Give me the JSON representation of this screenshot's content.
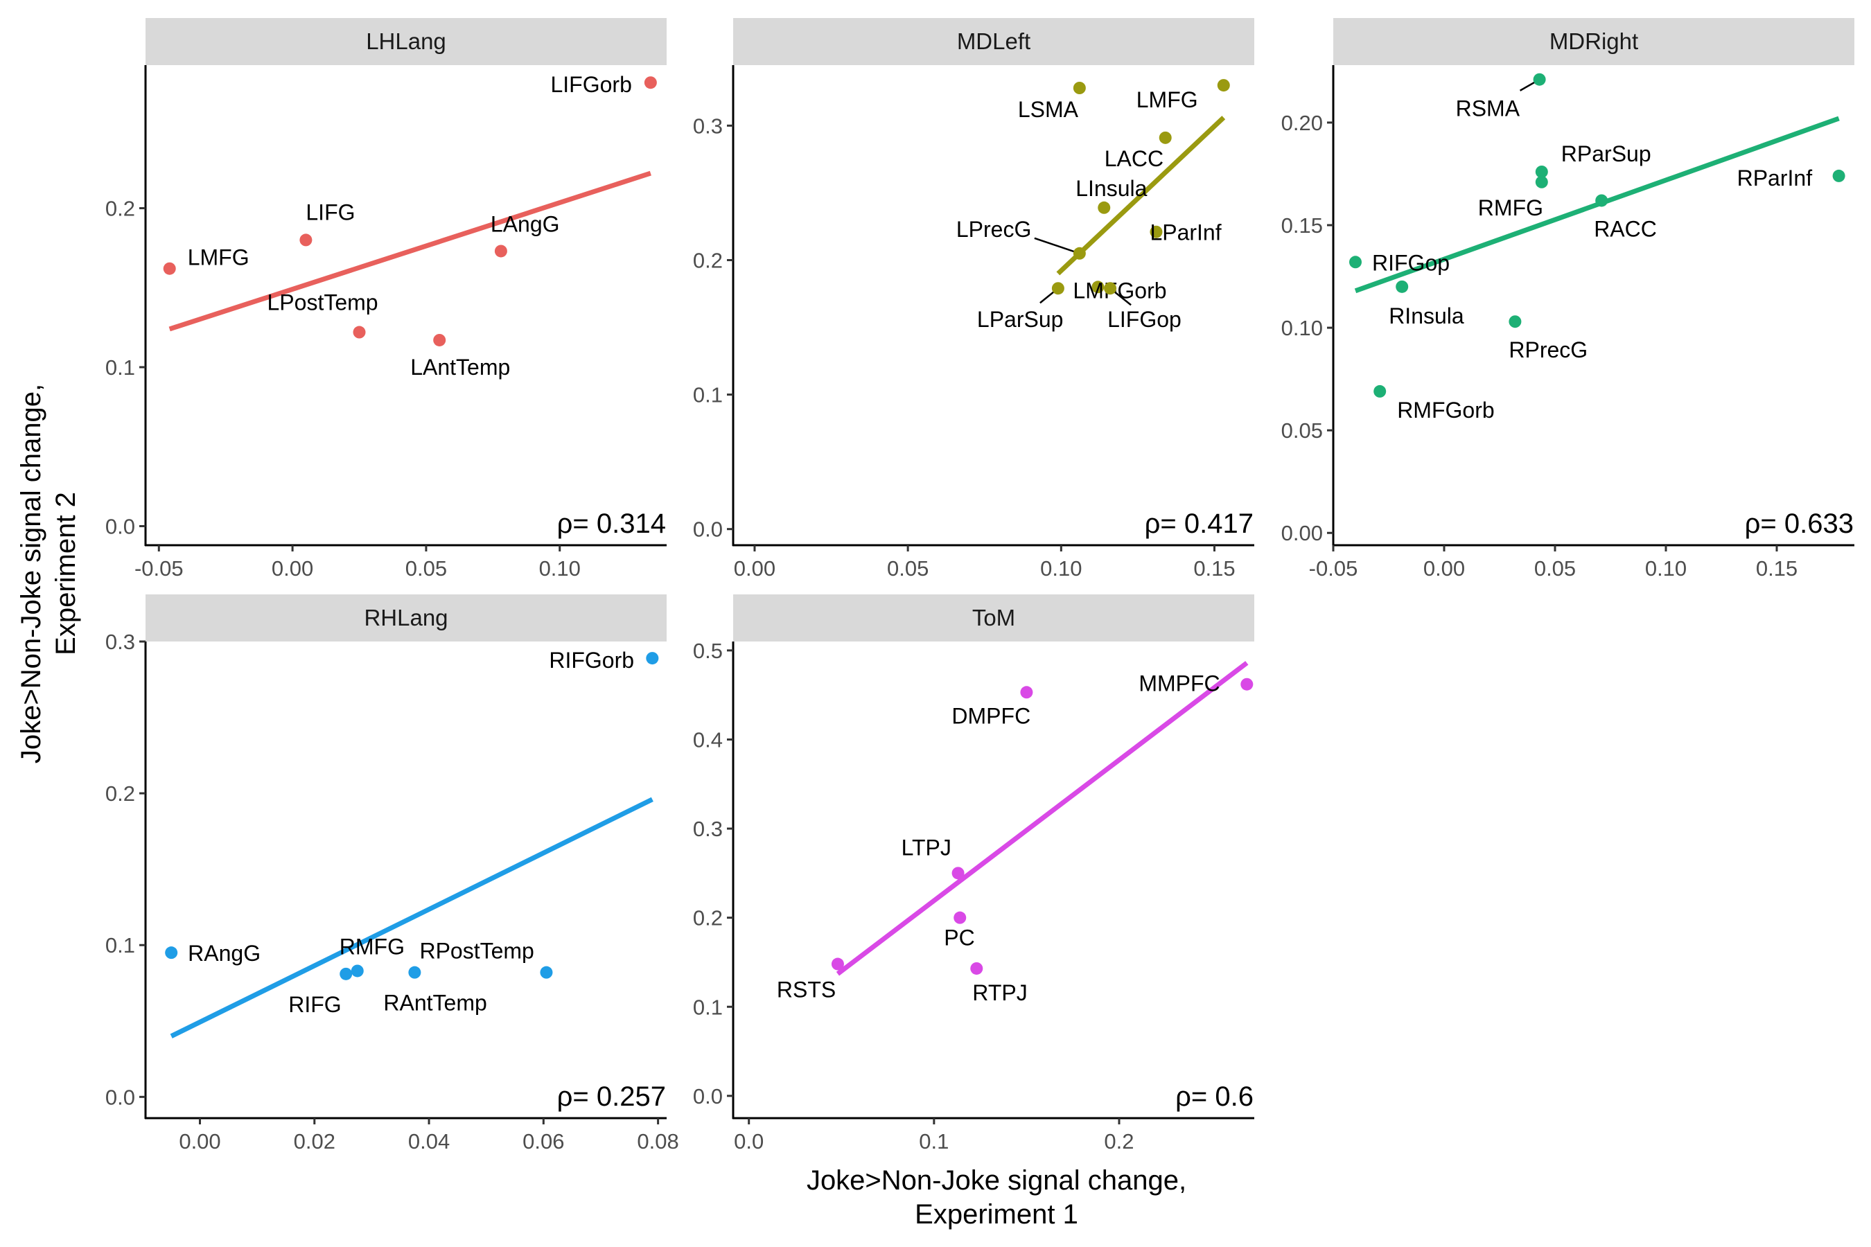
{
  "chart_data": {
    "type": "scatter",
    "xlabel": [
      "Joke>Non-Joke signal change,",
      "Experiment 1"
    ],
    "ylabel": [
      "Joke>Non-Joke signal change,",
      "Experiment 2"
    ],
    "panels": [
      {
        "title": "LHLang",
        "color": "#E8605C",
        "xlim": [
          -0.055,
          0.14
        ],
        "ylim": [
          -0.012,
          0.29
        ],
        "xticks": [
          -0.05,
          0.0,
          0.05,
          0.1
        ],
        "xtick_labels": [
          "-0.05",
          "0.00",
          "0.05",
          "0.10"
        ],
        "yticks": [
          0.0,
          0.1,
          0.2
        ],
        "ytick_labels": [
          "0.0",
          "0.1",
          "0.2"
        ],
        "fit": [
          [
            -0.046,
            0.124
          ],
          [
            0.134,
            0.222
          ]
        ],
        "rho": "ρ= 0.314",
        "points": [
          {
            "label": "LIFGorb",
            "x": 0.134,
            "y": 0.279
          },
          {
            "label": "LMFG",
            "x": -0.046,
            "y": 0.162
          },
          {
            "label": "LIFG",
            "x": 0.005,
            "y": 0.18
          },
          {
            "label": "LAngG",
            "x": 0.078,
            "y": 0.173
          },
          {
            "label": "LPostTemp",
            "x": 0.025,
            "y": 0.122
          },
          {
            "label": "LAntTemp",
            "x": 0.055,
            "y": 0.117
          }
        ]
      },
      {
        "title": "MDLeft",
        "color": "#9A9A10",
        "xlim": [
          -0.007,
          0.163
        ],
        "ylim": [
          -0.012,
          0.345
        ],
        "xticks": [
          0.0,
          0.05,
          0.1,
          0.15
        ],
        "xtick_labels": [
          "0.00",
          "0.05",
          "0.10",
          "0.15"
        ],
        "yticks": [
          0.0,
          0.1,
          0.2,
          0.3
        ],
        "ytick_labels": [
          "0.0",
          "0.1",
          "0.2",
          "0.3"
        ],
        "fit": [
          [
            0.099,
            0.19
          ],
          [
            0.153,
            0.306
          ]
        ],
        "rho": "ρ= 0.417",
        "points": [
          {
            "label": "LSMA",
            "x": 0.106,
            "y": 0.328
          },
          {
            "label": "LMFG",
            "x": 0.153,
            "y": 0.33
          },
          {
            "label": "LACC",
            "x": 0.134,
            "y": 0.291
          },
          {
            "label": "LInsula",
            "x": 0.114,
            "y": 0.239
          },
          {
            "label": "LParInf",
            "x": 0.131,
            "y": 0.221
          },
          {
            "label": "LPrecG",
            "x": 0.106,
            "y": 0.205
          },
          {
            "label": "LMFGorb",
            "x": 0.112,
            "y": 0.18
          },
          {
            "label": "LParSup",
            "x": 0.099,
            "y": 0.179
          },
          {
            "label": "LIFGop",
            "x": 0.116,
            "y": 0.179
          }
        ]
      },
      {
        "title": "MDRight",
        "color": "#1DB075",
        "xlim": [
          -0.05,
          0.185
        ],
        "ylim": [
          -0.006,
          0.228
        ],
        "xticks": [
          -0.05,
          0.0,
          0.05,
          0.1,
          0.15
        ],
        "xtick_labels": [
          "-0.05",
          "0.00",
          "0.05",
          "0.10",
          "0.15"
        ],
        "yticks": [
          0.0,
          0.05,
          0.1,
          0.15,
          0.2
        ],
        "ytick_labels": [
          "0.00",
          "0.05",
          "0.10",
          "0.15",
          "0.20"
        ],
        "fit": [
          [
            -0.04,
            0.118
          ],
          [
            0.178,
            0.202
          ]
        ],
        "rho": "ρ= 0.633",
        "points": [
          {
            "label": "RSMA",
            "x": 0.043,
            "y": 0.221
          },
          {
            "label": "RParSup",
            "x": 0.044,
            "y": 0.176
          },
          {
            "label": "RMFG",
            "x": 0.044,
            "y": 0.171
          },
          {
            "label": "RACC",
            "x": 0.071,
            "y": 0.162
          },
          {
            "label": "RParInf",
            "x": 0.178,
            "y": 0.174
          },
          {
            "label": "RIFGop",
            "x": -0.04,
            "y": 0.132
          },
          {
            "label": "RInsula",
            "x": -0.019,
            "y": 0.12
          },
          {
            "label": "RPrecG",
            "x": 0.032,
            "y": 0.103
          },
          {
            "label": "RMFGorb",
            "x": -0.029,
            "y": 0.069
          }
        ]
      },
      {
        "title": "RHLang",
        "color": "#1F9DE6",
        "xlim": [
          -0.0095,
          0.0815
        ],
        "ylim": [
          -0.014,
          0.3
        ],
        "xticks": [
          0.0,
          0.02,
          0.04,
          0.06,
          0.08
        ],
        "xtick_labels": [
          "0.00",
          "0.02",
          "0.04",
          "0.06",
          "0.08"
        ],
        "yticks": [
          0.0,
          0.1,
          0.2,
          0.3
        ],
        "ytick_labels": [
          "0.0",
          "0.1",
          "0.2",
          "0.3"
        ],
        "fit": [
          [
            -0.005,
            0.04
          ],
          [
            0.079,
            0.196
          ]
        ],
        "rho": "ρ= 0.257",
        "points": [
          {
            "label": "RIFGorb",
            "x": 0.079,
            "y": 0.289
          },
          {
            "label": "RAngG",
            "x": -0.005,
            "y": 0.095
          },
          {
            "label": "RMFG",
            "x": 0.0275,
            "y": 0.083
          },
          {
            "label": "RIFG",
            "x": 0.0255,
            "y": 0.081
          },
          {
            "label": "RAntTemp",
            "x": 0.0375,
            "y": 0.082
          },
          {
            "label": "RPostTemp",
            "x": 0.0605,
            "y": 0.082
          }
        ]
      },
      {
        "title": "ToM",
        "color": "#D949E6",
        "xlim": [
          -0.0085,
          0.273
        ],
        "ylim": [
          -0.025,
          0.51
        ],
        "xticks": [
          0.0,
          0.1,
          0.2
        ],
        "xtick_labels": [
          "0.0",
          "0.1",
          "0.2"
        ],
        "yticks": [
          0.0,
          0.1,
          0.2,
          0.3,
          0.4,
          0.5
        ],
        "ytick_labels": [
          "0.0",
          "0.1",
          "0.2",
          "0.3",
          "0.4",
          "0.5"
        ],
        "fit": [
          [
            0.048,
            0.137
          ],
          [
            0.269,
            0.486
          ]
        ],
        "rho": "ρ= 0.6",
        "points": [
          {
            "label": "MMPFC",
            "x": 0.269,
            "y": 0.462
          },
          {
            "label": "DMPFC",
            "x": 0.15,
            "y": 0.453
          },
          {
            "label": "LTPJ",
            "x": 0.113,
            "y": 0.25
          },
          {
            "label": "PC",
            "x": 0.114,
            "y": 0.2
          },
          {
            "label": "RSTS",
            "x": 0.048,
            "y": 0.148
          },
          {
            "label": "RTPJ",
            "x": 0.123,
            "y": 0.143
          }
        ]
      }
    ]
  }
}
